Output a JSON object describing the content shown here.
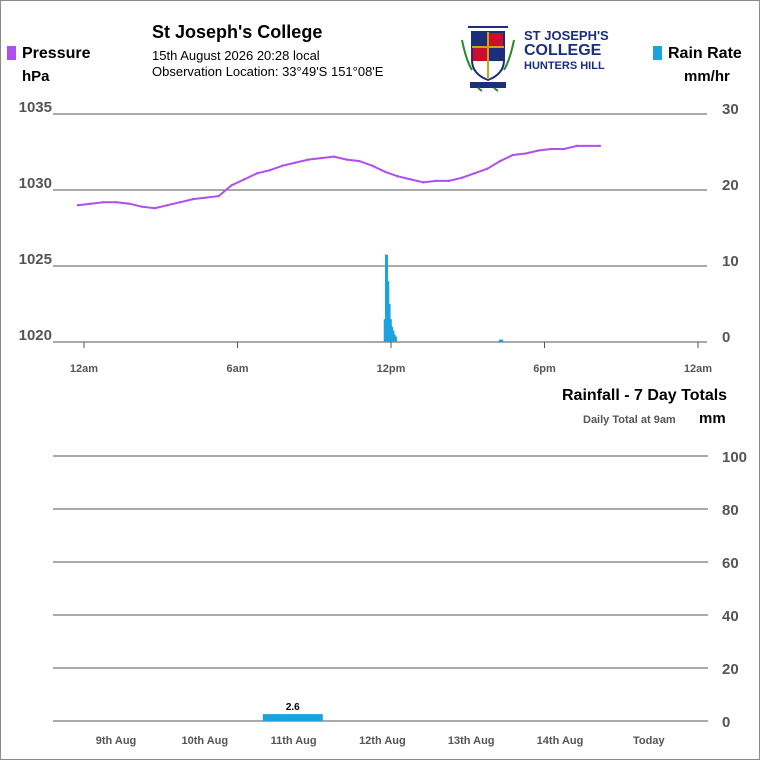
{
  "header": {
    "station_name": "St Joseph's College",
    "date_time": "15th August 2026  20:28 local",
    "observation_location": "Observation Location: 33°49'S 151°08'E",
    "logo": {
      "line1": "ST JOSEPH'S",
      "line2": "COLLEGE",
      "line3": "HUNTERS HILL",
      "colors": {
        "navy": "#1b2e7a",
        "red": "#c8102e",
        "gold": "#d4a017",
        "green": "#2a8a2a"
      }
    }
  },
  "legend": {
    "pressure_label": "Pressure",
    "pressure_unit": "hPa",
    "pressure_color": "#b04ff0",
    "rain_label": "Rain Rate",
    "rain_unit": "mm/hr",
    "rain_color": "#1aa3e0"
  },
  "chart_data": [
    {
      "type": "line",
      "title": "",
      "x_ticks": [
        "12am",
        "6am",
        "12pm",
        "6pm",
        "12am"
      ],
      "x_range_hours": [
        0,
        24
      ],
      "series": [
        {
          "name": "Pressure",
          "axis": "left",
          "unit": "hPa",
          "ylim": [
            1020,
            1035
          ],
          "y_ticks": [
            "1035",
            "1030",
            "1025",
            "1020"
          ],
          "x_hours": [
            0.0,
            0.5,
            1.0,
            1.5,
            2.0,
            2.5,
            3.0,
            3.5,
            4.0,
            4.5,
            5.0,
            5.5,
            6.0,
            6.5,
            7.0,
            7.5,
            8.0,
            8.5,
            9.0,
            9.5,
            10.0,
            10.5,
            11.0,
            11.5,
            12.0,
            12.5,
            13.0,
            13.5,
            14.0,
            14.5,
            15.0,
            15.5,
            16.0,
            16.5,
            17.0,
            17.5,
            18.0,
            18.5,
            19.0,
            19.5,
            20.4
          ],
          "values": [
            1029.0,
            1029.1,
            1029.2,
            1029.2,
            1029.1,
            1028.9,
            1028.8,
            1029.0,
            1029.2,
            1029.4,
            1029.5,
            1029.6,
            1030.3,
            1030.7,
            1031.1,
            1031.3,
            1031.6,
            1031.8,
            1032.0,
            1032.1,
            1032.2,
            1032.0,
            1031.9,
            1031.6,
            1031.2,
            1030.9,
            1030.7,
            1030.5,
            1030.6,
            1030.6,
            1030.8,
            1031.1,
            1031.4,
            1031.9,
            1032.3,
            1032.4,
            1032.6,
            1032.7,
            1032.7,
            1032.9,
            1032.9
          ]
        },
        {
          "name": "Rain Rate",
          "axis": "right",
          "type": "bar",
          "unit": "mm/hr",
          "ylim": [
            0,
            30
          ],
          "y_ticks": [
            "30",
            "20",
            "10",
            "0"
          ],
          "x_hours": [
            11.95,
            12.0,
            12.05,
            12.1,
            12.15,
            12.2,
            12.25,
            12.3,
            12.35,
            16.45,
            16.5
          ],
          "values": [
            3.0,
            11.5,
            8.0,
            5.0,
            3.0,
            2.0,
            1.5,
            1.0,
            0.7,
            0.3,
            0.3
          ]
        }
      ]
    },
    {
      "type": "bar",
      "title": "Rainfall - 7 Day Totals",
      "subtitle": "Daily Total at 9am",
      "ylabel": "mm",
      "ylim": [
        0,
        100
      ],
      "y_ticks": [
        "100",
        "80",
        "60",
        "40",
        "20",
        "0"
      ],
      "categories": [
        "9th Aug",
        "10th Aug",
        "11th Aug",
        "12th Aug",
        "13th Aug",
        "14th Aug",
        "Today"
      ],
      "values": [
        0,
        2.6,
        0,
        0,
        0,
        0,
        0
      ],
      "data_labels": [
        "",
        "2.6",
        "",
        "",
        "",
        "",
        ""
      ]
    }
  ]
}
